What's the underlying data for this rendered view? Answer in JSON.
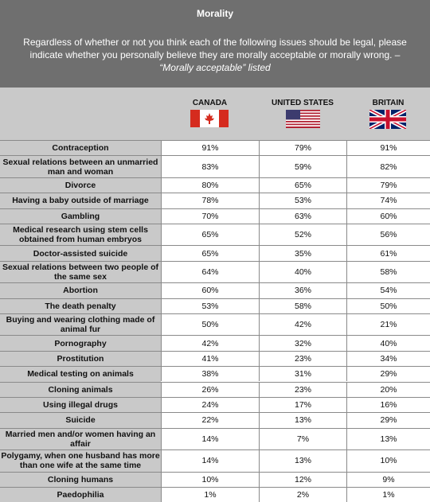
{
  "header": {
    "title": "Morality",
    "subtitle": "Regardless of whether or not you think each of the following issues should be legal, please indicate whether you personally believe they are morally acceptable or morally wrong. –",
    "subtitle_italic": "“Morally acceptable” listed"
  },
  "colors": {
    "header_bg": "#6f6f6f",
    "label_bg": "#c9c9c9",
    "cell_bg": "#ffffff",
    "grid_line": "#8a8a8a"
  },
  "columns": [
    {
      "name": "CANADA",
      "flag_icon": "canada-flag-icon"
    },
    {
      "name": "UNITED STATES",
      "flag_icon": "usa-flag-icon"
    },
    {
      "name": "BRITAIN",
      "flag_icon": "uk-flag-icon"
    }
  ],
  "chart_data": {
    "type": "table",
    "title": "Morality",
    "columns": [
      "CANADA",
      "UNITED STATES",
      "BRITAIN"
    ],
    "rows": [
      {
        "label": "Contraception",
        "values": [
          "91%",
          "79%",
          "91%"
        ]
      },
      {
        "label": "Sexual relations between an unmarried man and woman",
        "values": [
          "83%",
          "59%",
          "82%"
        ]
      },
      {
        "label": "Divorce",
        "values": [
          "80%",
          "65%",
          "79%"
        ]
      },
      {
        "label": "Having a baby outside of marriage",
        "values": [
          "78%",
          "53%",
          "74%"
        ]
      },
      {
        "label": "Gambling",
        "values": [
          "70%",
          "63%",
          "60%"
        ]
      },
      {
        "label": "Medical research using stem cells obtained from human embryos",
        "values": [
          "65%",
          "52%",
          "56%"
        ]
      },
      {
        "label": "Doctor-assisted suicide",
        "values": [
          "65%",
          "35%",
          "61%"
        ]
      },
      {
        "label": "Sexual relations between two people of the same sex",
        "values": [
          "64%",
          "40%",
          "58%"
        ]
      },
      {
        "label": "Abortion",
        "values": [
          "60%",
          "36%",
          "54%"
        ]
      },
      {
        "label": "The death penalty",
        "values": [
          "53%",
          "58%",
          "50%"
        ]
      },
      {
        "label": "Buying and wearing clothing made of animal fur",
        "values": [
          "50%",
          "42%",
          "21%"
        ]
      },
      {
        "label": "Pornography",
        "values": [
          "42%",
          "32%",
          "40%"
        ]
      },
      {
        "label": "Prostitution",
        "values": [
          "41%",
          "23%",
          "34%"
        ]
      },
      {
        "label": "Medical testing on animals",
        "values": [
          "38%",
          "31%",
          "29%"
        ]
      },
      {
        "label": "Cloning animals",
        "values": [
          "26%",
          "23%",
          "20%"
        ]
      },
      {
        "label": "Using illegal drugs",
        "values": [
          "24%",
          "17%",
          "16%"
        ]
      },
      {
        "label": "Suicide",
        "values": [
          "22%",
          "13%",
          "29%"
        ]
      },
      {
        "label": "Married men and/or women having an affair",
        "values": [
          "14%",
          "7%",
          "13%"
        ]
      },
      {
        "label": "Polygamy, when one husband has more than one wife at the same time",
        "values": [
          "14%",
          "13%",
          "10%"
        ]
      },
      {
        "label": "Cloning humans",
        "values": [
          "10%",
          "12%",
          "9%"
        ]
      },
      {
        "label": "Paedophilia",
        "values": [
          "1%",
          "2%",
          "1%"
        ]
      }
    ]
  }
}
